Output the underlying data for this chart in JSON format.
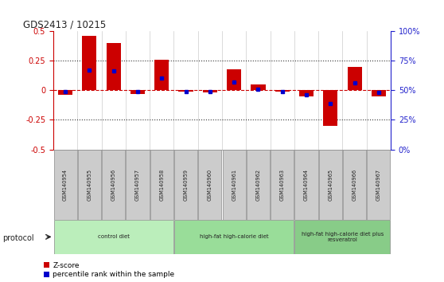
{
  "title": "GDS2413 / 10215",
  "samples": [
    "GSM140954",
    "GSM140955",
    "GSM140956",
    "GSM140957",
    "GSM140958",
    "GSM140959",
    "GSM140960",
    "GSM140961",
    "GSM140962",
    "GSM140963",
    "GSM140964",
    "GSM140965",
    "GSM140966",
    "GSM140967"
  ],
  "zscore": [
    -0.04,
    0.46,
    0.4,
    -0.03,
    0.26,
    -0.01,
    -0.02,
    0.18,
    0.05,
    -0.01,
    -0.05,
    -0.3,
    0.2,
    -0.05
  ],
  "percentile": [
    49,
    67,
    66,
    49,
    60,
    49,
    49,
    57,
    51,
    49,
    46,
    39,
    56,
    48
  ],
  "ylim_left": [
    -0.5,
    0.5
  ],
  "ylim_right": [
    0,
    100
  ],
  "yticks_left": [
    -0.5,
    -0.25,
    0,
    0.25,
    0.5
  ],
  "yticks_right": [
    0,
    25,
    50,
    75,
    100
  ],
  "ytick_labels_left": [
    "-0.5",
    "-0.25",
    "0",
    "0.25",
    "0.5"
  ],
  "ytick_labels_right": [
    "0%",
    "25%",
    "50%",
    "75%",
    "100%"
  ],
  "bar_color": "#cc0000",
  "dot_color": "#0000cc",
  "dashed_line_color": "#cc0000",
  "axis_color_left": "#cc0000",
  "axis_color_right": "#2222cc",
  "dotted_line_color": "#333333",
  "box_bg": "#cccccc",
  "box_edge": "#888888",
  "groups": [
    {
      "label": "control diet",
      "start": 0,
      "end": 4,
      "color": "#bbeebb"
    },
    {
      "label": "high-fat high-calorie diet",
      "start": 5,
      "end": 9,
      "color": "#99dd99"
    },
    {
      "label": "high-fat high-calorie diet plus\nresveratrol",
      "start": 10,
      "end": 13,
      "color": "#88cc88"
    }
  ],
  "protocol_label": "protocol",
  "legend_zscore": "Z-score",
  "legend_percentile": "percentile rank within the sample",
  "bg_color": "#ffffff"
}
